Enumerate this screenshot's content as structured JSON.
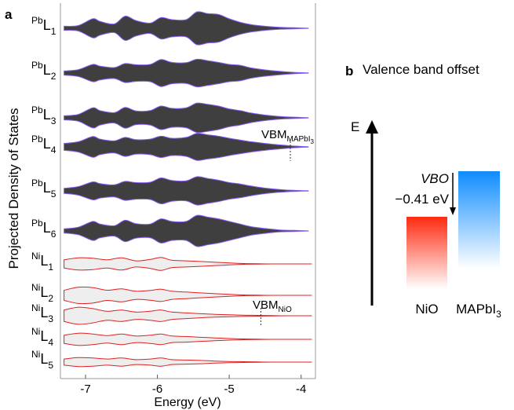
{
  "panel_a": {
    "letter": "a",
    "ylabel": "Projected Density of States",
    "xlabel": "Energy (eV)",
    "xticks": [
      "-7",
      "-6",
      "-5",
      "-4"
    ],
    "vbm_mapbi3": {
      "text": "VBM",
      "sub": "MAPbI",
      "sub2": "3"
    },
    "vbm_nio": {
      "text": "VBM",
      "sub": "NiO"
    }
  },
  "panel_b": {
    "letter": "b",
    "title": "Valence band offset",
    "e_label": "E",
    "vbo_label": "VBO",
    "vbo_value": "−0.41 eV",
    "nio_label": "NiO",
    "mapbi3_label": "MAPbI",
    "mapbi3_sub": "3",
    "colors": {
      "nio": "#ff2a10",
      "mapbi3": "#0f8cff"
    }
  },
  "chart_data": [
    {
      "type": "area",
      "title": "",
      "xlabel": "Energy (eV)",
      "ylabel": "Projected Density of States",
      "xlim": [
        -7.35,
        -3.8
      ],
      "grid": false,
      "series": [
        {
          "name": "PbL1",
          "element": "Pb",
          "layer": "1",
          "color": "#444444",
          "x": [
            -7.3,
            -7.1,
            -6.9,
            -6.8,
            -6.6,
            -6.45,
            -6.3,
            -6.1,
            -5.95,
            -5.8,
            -5.6,
            -5.45,
            -5.3,
            -5.15,
            -5.0,
            -4.85,
            -4.7,
            -4.5,
            -4.3,
            -4.1,
            -3.9
          ],
          "values": [
            0.12,
            0.16,
            0.55,
            0.4,
            0.25,
            0.7,
            0.45,
            0.3,
            0.62,
            0.5,
            0.5,
            0.95,
            0.85,
            0.8,
            0.55,
            0.35,
            0.22,
            0.12,
            0.06,
            0.03,
            0.01
          ]
        },
        {
          "name": "PbL2",
          "element": "Pb",
          "layer": "2",
          "color": "#444444",
          "x": [
            -7.3,
            -7.1,
            -6.9,
            -6.8,
            -6.6,
            -6.45,
            -6.3,
            -6.1,
            -5.95,
            -5.8,
            -5.6,
            -5.45,
            -5.3,
            -5.15,
            -5.0,
            -4.85,
            -4.7,
            -4.5,
            -4.3,
            -4.1,
            -3.9
          ],
          "values": [
            0.12,
            0.2,
            0.5,
            0.4,
            0.32,
            0.55,
            0.48,
            0.5,
            0.78,
            0.62,
            0.6,
            0.8,
            0.72,
            0.62,
            0.5,
            0.45,
            0.3,
            0.18,
            0.1,
            0.04,
            0.01
          ]
        },
        {
          "name": "PbL3",
          "element": "Pb",
          "layer": "3",
          "color": "#444444",
          "x": [
            -7.3,
            -7.1,
            -6.9,
            -6.8,
            -6.6,
            -6.45,
            -6.3,
            -6.1,
            -5.95,
            -5.8,
            -5.6,
            -5.45,
            -5.3,
            -5.15,
            -5.0,
            -4.85,
            -4.7,
            -4.5,
            -4.3,
            -4.1,
            -3.9
          ],
          "values": [
            0.12,
            0.2,
            0.58,
            0.42,
            0.3,
            0.6,
            0.4,
            0.42,
            0.68,
            0.55,
            0.58,
            0.85,
            0.78,
            0.68,
            0.52,
            0.42,
            0.28,
            0.16,
            0.08,
            0.04,
            0.01
          ]
        },
        {
          "name": "PbL4",
          "element": "Pb",
          "layer": "4",
          "color": "#444444",
          "x": [
            -7.3,
            -7.1,
            -6.9,
            -6.8,
            -6.6,
            -6.45,
            -6.3,
            -6.1,
            -5.95,
            -5.8,
            -5.6,
            -5.45,
            -5.3,
            -5.15,
            -5.0,
            -4.85,
            -4.7,
            -4.5,
            -4.3,
            -4.1,
            -3.9
          ],
          "values": [
            0.2,
            0.3,
            0.6,
            0.45,
            0.35,
            0.55,
            0.42,
            0.45,
            0.62,
            0.5,
            0.55,
            0.78,
            0.7,
            0.62,
            0.5,
            0.4,
            0.3,
            0.2,
            0.12,
            0.05,
            0.01
          ]
        },
        {
          "name": "PbL5",
          "element": "Pb",
          "layer": "5",
          "color": "#444444",
          "x": [
            -7.3,
            -7.1,
            -6.9,
            -6.8,
            -6.6,
            -6.45,
            -6.3,
            -6.1,
            -5.95,
            -5.8,
            -5.6,
            -5.45,
            -5.3,
            -5.15,
            -5.0,
            -4.85,
            -4.7,
            -4.5,
            -4.3,
            -4.1,
            -3.9
          ],
          "values": [
            0.15,
            0.25,
            0.52,
            0.42,
            0.35,
            0.55,
            0.48,
            0.5,
            0.75,
            0.6,
            0.58,
            0.82,
            0.72,
            0.62,
            0.48,
            0.4,
            0.28,
            0.16,
            0.08,
            0.03,
            0.01
          ]
        },
        {
          "name": "PbL6",
          "element": "Pb",
          "layer": "6",
          "color": "#444444",
          "x": [
            -7.3,
            -7.1,
            -6.9,
            -6.8,
            -6.6,
            -6.45,
            -6.3,
            -6.1,
            -5.95,
            -5.8,
            -5.6,
            -5.45,
            -5.3,
            -5.15,
            -5.0,
            -4.85,
            -4.7,
            -4.5,
            -4.3,
            -4.1,
            -3.9
          ],
          "values": [
            0.12,
            0.22,
            0.55,
            0.4,
            0.3,
            0.62,
            0.42,
            0.4,
            0.7,
            0.55,
            0.55,
            0.9,
            0.8,
            0.7,
            0.55,
            0.4,
            0.25,
            0.14,
            0.06,
            0.03,
            0.01
          ]
        },
        {
          "name": "NiL1",
          "element": "Ni",
          "layer": "1",
          "color": "#e8e8e8",
          "x": [
            -7.3,
            -7.1,
            -6.9,
            -6.7,
            -6.5,
            -6.3,
            -6.1,
            -5.95,
            -5.8,
            -5.6,
            -5.4,
            -5.2,
            -5.0,
            -4.8,
            -4.6,
            -4.4,
            -4.2,
            -4.0,
            -3.85
          ],
          "values": [
            0.2,
            0.3,
            0.28,
            0.2,
            0.3,
            0.15,
            0.22,
            0.32,
            0.18,
            0.15,
            0.12,
            0.08,
            0.05,
            0.02,
            0.01,
            0.0,
            0.0,
            0.0,
            0.0
          ]
        },
        {
          "name": "NiL2",
          "element": "Ni",
          "layer": "2",
          "color": "#e8e8e8",
          "x": [
            -7.3,
            -7.1,
            -6.9,
            -6.7,
            -6.5,
            -6.3,
            -6.1,
            -5.95,
            -5.8,
            -5.6,
            -5.4,
            -5.2,
            -5.0,
            -4.8,
            -4.6,
            -4.4,
            -4.2,
            -4.0,
            -3.85
          ],
          "values": [
            0.25,
            0.4,
            0.38,
            0.25,
            0.32,
            0.2,
            0.24,
            0.3,
            0.2,
            0.16,
            0.12,
            0.08,
            0.05,
            0.02,
            0.01,
            0.0,
            0.0,
            0.0,
            0.0
          ]
        },
        {
          "name": "NiL3",
          "element": "Ni",
          "layer": "3",
          "color": "#e8e8e8",
          "x": [
            -7.3,
            -7.1,
            -6.9,
            -6.7,
            -6.5,
            -6.3,
            -6.1,
            -5.95,
            -5.8,
            -5.6,
            -5.4,
            -5.2,
            -5.0,
            -4.8,
            -4.6,
            -4.4,
            -4.2,
            -4.0,
            -3.85
          ],
          "values": [
            0.28,
            0.42,
            0.35,
            0.22,
            0.28,
            0.18,
            0.22,
            0.28,
            0.18,
            0.14,
            0.1,
            0.07,
            0.05,
            0.03,
            0.02,
            0.01,
            0.0,
            0.0,
            0.0
          ]
        },
        {
          "name": "NiL4",
          "element": "Ni",
          "layer": "4",
          "color": "#e8e8e8",
          "x": [
            -7.3,
            -7.1,
            -6.9,
            -6.7,
            -6.5,
            -6.3,
            -6.1,
            -5.95,
            -5.8,
            -5.6,
            -5.4,
            -5.2,
            -5.0,
            -4.8,
            -4.6,
            -4.4,
            -4.2,
            -4.0,
            -3.85
          ],
          "values": [
            0.2,
            0.3,
            0.26,
            0.18,
            0.26,
            0.16,
            0.2,
            0.26,
            0.16,
            0.14,
            0.1,
            0.07,
            0.04,
            0.02,
            0.01,
            0.0,
            0.0,
            0.0,
            0.0
          ]
        },
        {
          "name": "NiL5",
          "element": "Ni",
          "layer": "5",
          "color": "#e8e8e8",
          "x": [
            -7.3,
            -7.1,
            -6.9,
            -6.7,
            -6.5,
            -6.3,
            -6.1,
            -5.95,
            -5.8,
            -5.6,
            -5.4,
            -5.2,
            -5.0,
            -4.8,
            -4.6,
            -4.4,
            -4.2,
            -4.0,
            -3.85
          ],
          "values": [
            0.15,
            0.22,
            0.2,
            0.15,
            0.2,
            0.12,
            0.15,
            0.2,
            0.12,
            0.1,
            0.08,
            0.05,
            0.03,
            0.02,
            0.01,
            0.0,
            0.0,
            0.0,
            0.0
          ]
        }
      ],
      "annotations": [
        {
          "text": "VBM MAPbI3",
          "x": -4.15
        },
        {
          "text": "VBM NiO",
          "x": -4.56
        }
      ]
    },
    {
      "type": "bar",
      "title": "Valence band offset",
      "ylabel": "E",
      "categories": [
        "NiO",
        "MAPbI3"
      ],
      "valence_band_offset_eV": -0.41,
      "values": [
        -0.41,
        0.0
      ],
      "colors": [
        "#ff2a10",
        "#0f8cff"
      ]
    }
  ]
}
